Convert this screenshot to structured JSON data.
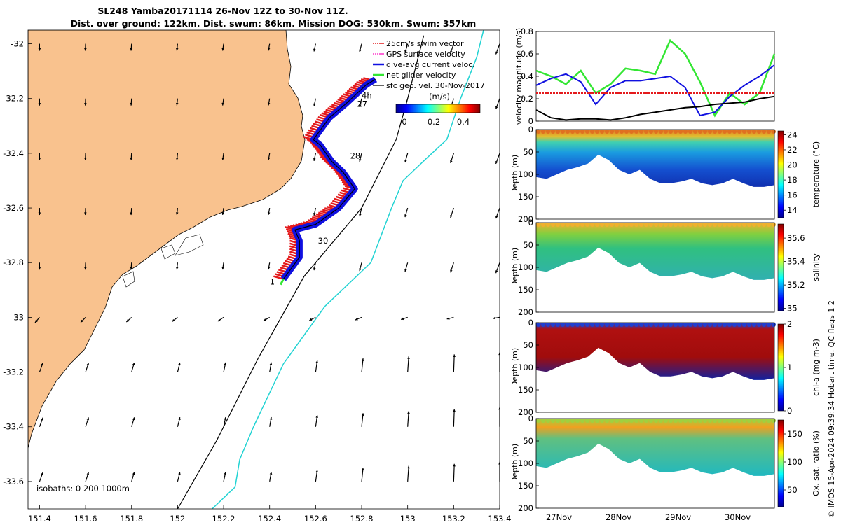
{
  "title": {
    "line1": "SL248 Yamba20171114 26-Nov 12Z to 30-Nov 11Z.",
    "line2": "Dist. over ground: 122km. Dist. swum: 86km. Mission DOG: 530km. Swum: 357km"
  },
  "credit": "© IMOS 15-Apr-2024 09:39:34 Hobart time. QC flags 1  2",
  "colors": {
    "land": "#f9c28e",
    "isobath_200": "#000000",
    "isobath_1000": "#22d3d3",
    "swim_vector": "#e41a1c",
    "gps_velocity": "#ff33cc",
    "dive_avg": "#1010e0",
    "net_glider": "#33e633",
    "sfc_geo": "#000000"
  },
  "chart_data": [
    {
      "type": "map",
      "xlim": [
        151.35,
        153.4
      ],
      "ylim": [
        -33.7,
        -31.95
      ],
      "x_ticks": [
        "151.4",
        "151.6",
        "151.8",
        "152",
        "152.2",
        "152.4",
        "152.6",
        "152.8",
        "153",
        "153.2",
        "153.4"
      ],
      "x_tick_values": [
        151.4,
        151.6,
        151.8,
        152.0,
        152.2,
        152.4,
        152.6,
        152.8,
        153.0,
        153.2,
        153.4
      ],
      "y_ticks": [
        "-32",
        "-32.2",
        "-32.4",
        "-32.6",
        "-32.8",
        "-33",
        "-33.2",
        "-33.4",
        "-33.6"
      ],
      "y_tick_values": [
        -32.0,
        -32.2,
        -32.4,
        -32.6,
        -32.8,
        -33.0,
        -33.2,
        -33.4,
        -33.6
      ],
      "legend": [
        {
          "label": "25cm/s swim vector",
          "color": "#e41a1c"
        },
        {
          "label": "GPS surface velocity",
          "color": "#ff33cc"
        },
        {
          "label": "dive-avg current veloc.",
          "color": "#1010e0"
        },
        {
          "label": "net glider velocity",
          "color": "#33e633"
        },
        {
          "label": "sfc geo. vel. 30-Nov-2017",
          "color": "#000000"
        }
      ],
      "legend_placement": "top-right",
      "colorbar": {
        "label": "(m/s)",
        "ticks": [
          "0",
          "0.2",
          "0.4"
        ],
        "range": [
          0,
          0.5
        ]
      },
      "isobath_label": "isobaths: 0   200  1000m",
      "day_labels": [
        {
          "text": "4h",
          "lon": 152.8,
          "lat": -32.2
        },
        {
          "text": "27",
          "lon": 152.78,
          "lat": -32.23
        },
        {
          "text": "28",
          "lon": 152.75,
          "lat": -32.42
        },
        {
          "text": "30",
          "lon": 152.61,
          "lat": -32.73
        },
        {
          "text": "1",
          "lon": 152.4,
          "lat": -32.88
        }
      ],
      "glider_track": [
        [
          152.46,
          -32.86
        ],
        [
          152.53,
          -32.78
        ],
        [
          152.53,
          -32.72
        ],
        [
          152.51,
          -32.68
        ],
        [
          152.6,
          -32.66
        ],
        [
          152.7,
          -32.6
        ],
        [
          152.77,
          -32.53
        ],
        [
          152.72,
          -32.47
        ],
        [
          152.67,
          -32.43
        ],
        [
          152.62,
          -32.37
        ],
        [
          152.59,
          -32.35
        ],
        [
          152.66,
          -32.27
        ],
        [
          152.73,
          -32.22
        ],
        [
          152.82,
          -32.15
        ],
        [
          152.86,
          -32.13
        ]
      ],
      "isobath_200_line": [
        [
          152.0,
          -33.7
        ],
        [
          152.17,
          -33.45
        ],
        [
          152.35,
          -33.15
        ],
        [
          152.55,
          -32.85
        ],
        [
          152.8,
          -32.6
        ],
        [
          152.95,
          -32.35
        ],
        [
          153.0,
          -32.2
        ],
        [
          153.07,
          -31.97
        ]
      ],
      "isobath_1000_line": [
        [
          152.15,
          -33.7
        ],
        [
          152.25,
          -33.62
        ],
        [
          152.27,
          -33.52
        ],
        [
          152.33,
          -33.4
        ],
        [
          152.46,
          -33.17
        ],
        [
          152.64,
          -32.96
        ],
        [
          152.84,
          -32.8
        ],
        [
          152.93,
          -32.6
        ],
        [
          152.98,
          -32.5
        ],
        [
          153.08,
          -32.42
        ],
        [
          153.17,
          -32.35
        ],
        [
          153.23,
          -32.2
        ],
        [
          153.3,
          -32.05
        ],
        [
          153.33,
          -31.95
        ]
      ],
      "current_vectors_note": "sfc geo. vel. arrows on 0.2 degree grid"
    },
    {
      "type": "line",
      "ylabel": "velocity magnitude (m/s)",
      "ylim": [
        0,
        0.8
      ],
      "y_ticks": [
        "0",
        "0.2",
        "0.4",
        "0.6",
        "0.8"
      ],
      "x": [
        0,
        0.25,
        0.5,
        0.75,
        1.0,
        1.25,
        1.5,
        1.75,
        2.0,
        2.25,
        2.5,
        2.75,
        3.0,
        3.25,
        3.5,
        3.75,
        4.0
      ],
      "series": [
        {
          "values": [
            0.45,
            0.4,
            0.33,
            0.45,
            0.25,
            0.33,
            0.47,
            0.45,
            0.42,
            0.72,
            0.6,
            0.35,
            0.05,
            0.25,
            0.15,
            0.25,
            0.6
          ],
          "color": "#33e633"
        },
        {
          "values": [
            0.32,
            0.38,
            0.42,
            0.35,
            0.15,
            0.3,
            0.36,
            0.36,
            0.38,
            0.4,
            0.3,
            0.05,
            0.08,
            0.22,
            0.32,
            0.4,
            0.5
          ],
          "color": "#1010e0"
        },
        {
          "values": [
            0.25,
            0.25,
            0.25,
            0.25,
            0.25,
            0.25,
            0.25,
            0.25,
            0.25,
            0.25,
            0.25,
            0.25,
            0.25,
            0.25,
            0.25,
            0.25,
            0.25
          ],
          "color": "#e41a1c"
        },
        {
          "values": [
            0.1,
            0.03,
            0.01,
            0.02,
            0.02,
            0.01,
            0.03,
            0.06,
            0.08,
            0.1,
            0.12,
            0.13,
            0.15,
            0.16,
            0.17,
            0.2,
            0.22
          ],
          "color": "#000000"
        }
      ]
    },
    {
      "type": "heatmap",
      "ylabel": "Depth (m)",
      "colorbar_label": "temperature (°C)",
      "colorbar_ticks": [
        "14",
        "16",
        "18",
        "20",
        "22",
        "24"
      ],
      "colorbar_range": [
        13,
        24.5
      ],
      "y_ticks": [
        "0",
        "50",
        "100",
        "150",
        "200"
      ],
      "ylim": [
        0,
        200
      ]
    },
    {
      "type": "heatmap",
      "ylabel": "Depth (m)",
      "colorbar_label": "salinity",
      "colorbar_ticks": [
        "35",
        "35.2",
        "35.4",
        "35.6"
      ],
      "colorbar_range": [
        34.98,
        35.72
      ],
      "y_ticks": [
        "0",
        "50",
        "100",
        "150",
        "200"
      ],
      "ylim": [
        0,
        200
      ]
    },
    {
      "type": "heatmap",
      "ylabel": "Depth (m)",
      "colorbar_label": "chl-a (mg m-3)",
      "colorbar_ticks": [
        "0",
        "1",
        "2"
      ],
      "colorbar_range": [
        0,
        2
      ],
      "y_ticks": [
        "0",
        "50",
        "100",
        "150",
        "200"
      ],
      "ylim": [
        0,
        200
      ]
    },
    {
      "type": "heatmap",
      "ylabel": "Depth (m)",
      "colorbar_label": "Ox. sat. ratio (%)",
      "colorbar_ticks": [
        "50",
        "100",
        "150"
      ],
      "colorbar_range": [
        20,
        175
      ],
      "y_ticks": [
        "0",
        "50",
        "100",
        "150",
        "200"
      ],
      "ylim": [
        0,
        200
      ],
      "x_ticks": [
        "27Nov",
        "28Nov",
        "29Nov",
        "30Nov"
      ]
    }
  ]
}
